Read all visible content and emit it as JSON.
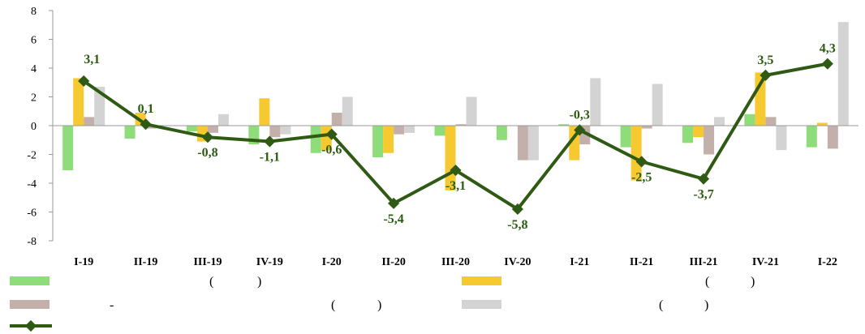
{
  "colors": {
    "series_green": "#8fdc7a",
    "series_yellow": "#f6c930",
    "series_brown": "#c4b0ab",
    "series_gray": "#d3d3d3",
    "line": "#2f5a14",
    "axis": "#9a9a9a"
  },
  "legend": [
    {
      "swatch": "bar",
      "color": "#8fdc7a",
      "fragments": [
        "(",
        ")"
      ]
    },
    {
      "swatch": "bar",
      "color": "#f6c930",
      "fragments": [
        "(",
        ")"
      ]
    },
    {
      "swatch": "bar",
      "color": "#c4b0ab",
      "fragments": [
        "-",
        "(",
        ")"
      ]
    },
    {
      "swatch": "bar",
      "color": "#d3d3d3",
      "fragments": [
        "(",
        ")"
      ]
    },
    {
      "swatch": "line",
      "color": "#2f5a14",
      "fragments": []
    }
  ],
  "chart_data": {
    "type": "bar",
    "categories": [
      "I-19",
      "II-19",
      "III-19",
      "IV-19",
      "I-20",
      "II-20",
      "III-20",
      "IV-20",
      "I-21",
      "II-21",
      "III-21",
      "IV-21",
      "I-22"
    ],
    "ylim": [
      -8,
      8
    ],
    "yticks": [
      -8,
      -6,
      -4,
      -2,
      0,
      2,
      4,
      6,
      8
    ],
    "grid": false,
    "legend_position": "bottom",
    "bar_series": [
      {
        "color": "#8fdc7a",
        "values": [
          -3.1,
          -0.9,
          -0.4,
          -1.3,
          -1.9,
          -2.2,
          -0.7,
          -1.0,
          0.1,
          -1.5,
          -1.2,
          0.8,
          -1.5
        ]
      },
      {
        "color": "#f6c930",
        "values": [
          3.3,
          0.9,
          -1.1,
          1.9,
          -1.7,
          -1.9,
          -4.5,
          0.0,
          -2.4,
          -3.8,
          -0.8,
          3.7,
          0.2
        ]
      },
      {
        "color": "#c4b0ab",
        "values": [
          0.6,
          -0.2,
          -0.5,
          -0.8,
          0.9,
          -0.6,
          0.1,
          -2.4,
          -1.3,
          -0.2,
          -2.0,
          0.6,
          -1.6
        ]
      },
      {
        "color": "#d3d3d3",
        "values": [
          2.7,
          0.0,
          0.8,
          -0.6,
          2.0,
          -0.5,
          2.0,
          -2.4,
          3.3,
          2.9,
          0.6,
          -1.7,
          7.2
        ]
      }
    ],
    "line_series": {
      "color": "#2f5a14",
      "values": [
        3.1,
        0.1,
        -0.8,
        -1.1,
        -0.6,
        -5.4,
        -3.1,
        -5.8,
        -0.3,
        -2.5,
        -3.7,
        3.5,
        4.3
      ],
      "labels": [
        "3,1",
        "0,1",
        "-0,8",
        "-1,1",
        "-0,6",
        "-5,4",
        "-3,1",
        "-5,8",
        "-0,3",
        "-2,5",
        "-3,7",
        "3,5",
        "4,3"
      ]
    }
  }
}
